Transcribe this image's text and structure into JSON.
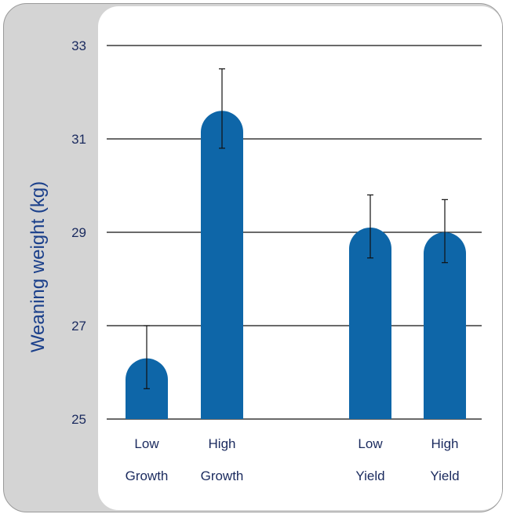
{
  "chart_data": {
    "type": "bar",
    "title": "",
    "ylabel": "Weaning weight (kg)",
    "xlabel": "",
    "ylim": [
      25,
      33
    ],
    "yticks": [
      "25",
      "27",
      "29",
      "31",
      "33"
    ],
    "grid": true,
    "bar_color": "#0e66a8",
    "categories": [
      {
        "line1": "Low",
        "line2": "Growth"
      },
      {
        "line1": "High",
        "line2": "Growth"
      },
      {
        "line1": "Low",
        "line2": "Yield"
      },
      {
        "line1": "High",
        "line2": "Yield"
      }
    ],
    "values": [
      26.3,
      31.6,
      29.1,
      29.0
    ],
    "error_high": [
      27.0,
      32.5,
      29.8,
      29.7
    ],
    "error_low": [
      25.65,
      30.8,
      28.45,
      28.35
    ]
  }
}
